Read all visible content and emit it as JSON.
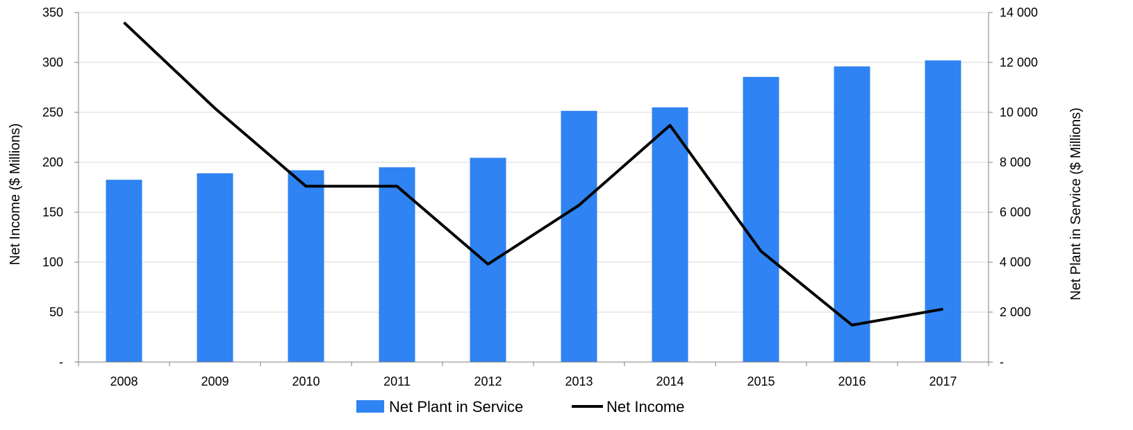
{
  "colors": {
    "bar": "#2f83f2",
    "line": "#000000",
    "grid": "#d9d9d9",
    "axis": "#7f7f7f"
  },
  "chart_data": {
    "type": "bar",
    "categories": [
      "2008",
      "2009",
      "2010",
      "2011",
      "2012",
      "2013",
      "2014",
      "2015",
      "2016",
      "2017"
    ],
    "series": [
      {
        "name": "Net Plant in Service",
        "type": "bar",
        "axis": "right",
        "values": [
          7300,
          7560,
          7680,
          7800,
          8180,
          10060,
          10200,
          11420,
          11840,
          12080
        ]
      },
      {
        "name": "Net Income",
        "type": "line",
        "axis": "left",
        "values": [
          340,
          254,
          176,
          176,
          98,
          157,
          237,
          111,
          37,
          53
        ]
      }
    ],
    "ylabel": "Net Income ($ Millions)",
    "y2label": "Net Plant in Service ($ Millions)",
    "ylim": [
      0,
      350
    ],
    "y2lim": [
      0,
      14000
    ],
    "yticks": [
      "-",
      "50",
      "100",
      "150",
      "200",
      "250",
      "300",
      "350"
    ],
    "y2ticks": [
      "-",
      "2 000",
      "4 000",
      "6 000",
      "8 000",
      "10 000",
      "12 000",
      "14 000"
    ],
    "grid": true,
    "legend_position": "bottom-center"
  }
}
